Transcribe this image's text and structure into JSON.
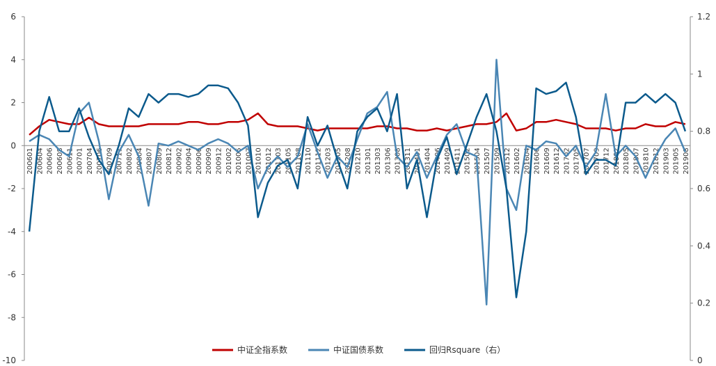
{
  "chart_data": {
    "type": "line",
    "categories": [
      "200601",
      "200604",
      "200606",
      "200608",
      "200611",
      "200701",
      "200704",
      "200706",
      "200709",
      "200711",
      "200802",
      "200804",
      "200807",
      "200809",
      "200812",
      "200902",
      "200904",
      "200906",
      "200909",
      "200912",
      "201002",
      "201005",
      "201007",
      "201010",
      "201012",
      "201103",
      "201105",
      "201108",
      "201110",
      "201112",
      "201203",
      "201205",
      "201208",
      "201210",
      "201301",
      "201303",
      "201306",
      "201308",
      "201311",
      "201401",
      "201404",
      "201406",
      "201409",
      "201411",
      "201502",
      "201504",
      "201507",
      "201509",
      "201512",
      "201602",
      "201604",
      "201606",
      "201609",
      "201612",
      "201702",
      "201705",
      "201707",
      "201709",
      "201712",
      "201802",
      "201805",
      "201807",
      "201810",
      "201812",
      "201903",
      "201905",
      "201908"
    ],
    "series": [
      {
        "name": "中证全指系数",
        "color": "#c00000",
        "values": [
          0.5,
          0.9,
          1.2,
          1.1,
          1.0,
          1.0,
          1.3,
          1.0,
          0.9,
          0.9,
          0.9,
          0.9,
          1.0,
          1.0,
          1.0,
          1.0,
          1.1,
          1.1,
          1.0,
          1.0,
          1.1,
          1.1,
          1.2,
          1.5,
          1.0,
          0.9,
          0.9,
          0.9,
          0.8,
          0.7,
          0.8,
          0.8,
          0.8,
          0.8,
          0.8,
          0.9,
          0.9,
          0.8,
          0.8,
          0.7,
          0.7,
          0.8,
          0.7,
          0.8,
          0.9,
          1.0,
          1.0,
          1.1,
          1.5,
          0.7,
          0.8,
          1.1,
          1.1,
          1.2,
          1.1,
          1.0,
          0.8,
          0.8,
          0.8,
          0.7,
          0.8,
          0.8,
          1.0,
          0.9,
          0.9,
          1.1,
          1.0
        ]
      },
      {
        "name": "中证国债系数",
        "color": "#4a86b4",
        "values": [
          0.2,
          0.5,
          0.3,
          -0.2,
          -0.5,
          1.5,
          2.0,
          0.2,
          -2.5,
          -0.3,
          0.5,
          -0.5,
          -2.8,
          0.1,
          0,
          0.2,
          0,
          -0.2,
          0.1,
          0.3,
          0.1,
          -0.3,
          0,
          -2.0,
          -1.0,
          -0.5,
          -1.0,
          -0.5,
          1.0,
          -0.3,
          -1.5,
          -0.5,
          -1.0,
          0.3,
          1.5,
          1.8,
          2.5,
          -0.5,
          -1.0,
          -0.3,
          -1.5,
          -0.5,
          0.5,
          1.0,
          -0.3,
          -0.5,
          -7.4,
          4.0,
          -2.0,
          -3.0,
          0,
          -0.2,
          0.2,
          0.1,
          -0.5,
          0,
          -1.0,
          -0.3,
          2.4,
          -0.5,
          0,
          -0.5,
          -1.5,
          -0.5,
          0.3,
          0.8,
          -0.3
        ]
      },
      {
        "name": "回归Rsquare（右）",
        "color": "#0b5a8c",
        "axis": "y2",
        "values": [
          0.45,
          0.8,
          0.92,
          0.8,
          0.8,
          0.88,
          0.78,
          0.7,
          0.65,
          0.75,
          0.88,
          0.85,
          0.93,
          0.9,
          0.93,
          0.93,
          0.92,
          0.93,
          0.96,
          0.96,
          0.95,
          0.9,
          0.82,
          0.5,
          0.62,
          0.68,
          0.7,
          0.6,
          0.85,
          0.75,
          0.82,
          0.7,
          0.6,
          0.8,
          0.85,
          0.88,
          0.8,
          0.93,
          0.6,
          0.7,
          0.5,
          0.7,
          0.78,
          0.65,
          0.75,
          0.85,
          0.93,
          0.8,
          0.6,
          0.22,
          0.45,
          0.95,
          0.93,
          0.94,
          0.97,
          0.85,
          0.65,
          0.7,
          0.7,
          0.68,
          0.9,
          0.9,
          0.93,
          0.9,
          0.93,
          0.9,
          0.8
        ]
      }
    ],
    "ylim": [
      -10,
      6
    ],
    "yticks": [
      -10,
      -8,
      -6,
      -4,
      -2,
      0,
      2,
      4,
      6
    ],
    "y2lim": [
      0,
      1.2
    ],
    "y2ticks": [
      0,
      0.2,
      0.4,
      0.6,
      0.8,
      1,
      1.2
    ],
    "legend": "bottom"
  }
}
